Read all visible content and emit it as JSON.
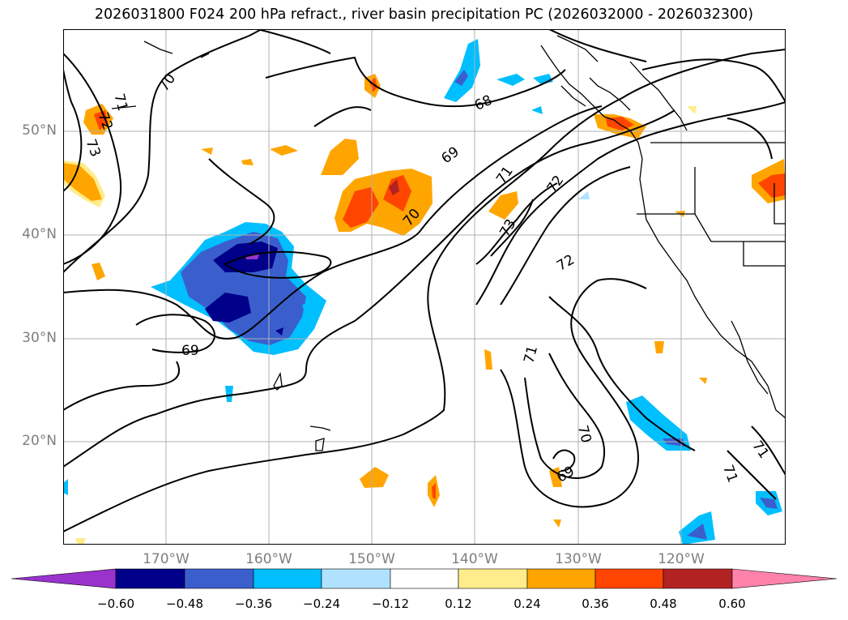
{
  "title": "2026031800 F024 200 hPa refract., river basin precipitation PC (2026032000 - 2026032300)",
  "lat_labels": [
    "50°N",
    "40°N",
    "30°N",
    "20°N"
  ],
  "lon_labels": [
    "170°W",
    "160°W",
    "150°W",
    "140°W",
    "130°W",
    "120°W"
  ],
  "contour_labels": [
    "70",
    "71",
    "72",
    "73",
    "68",
    "69",
    "70",
    "71",
    "72",
    "73",
    "72",
    "69",
    "71",
    "70",
    "69",
    "71",
    "71"
  ],
  "colorbar": {
    "ticks": [
      "−0.60",
      "−0.48",
      "−0.36",
      "−0.24",
      "−0.12",
      "0.12",
      "0.24",
      "0.36",
      "0.48",
      "0.60"
    ],
    "colors": [
      "#9933cc",
      "#00008b",
      "#3a5fcd",
      "#00bfff",
      "#b0e2ff",
      "#ffffff",
      "#ffec8b",
      "#ffa500",
      "#ff4500",
      "#b22222",
      "#ff82ab"
    ]
  }
}
